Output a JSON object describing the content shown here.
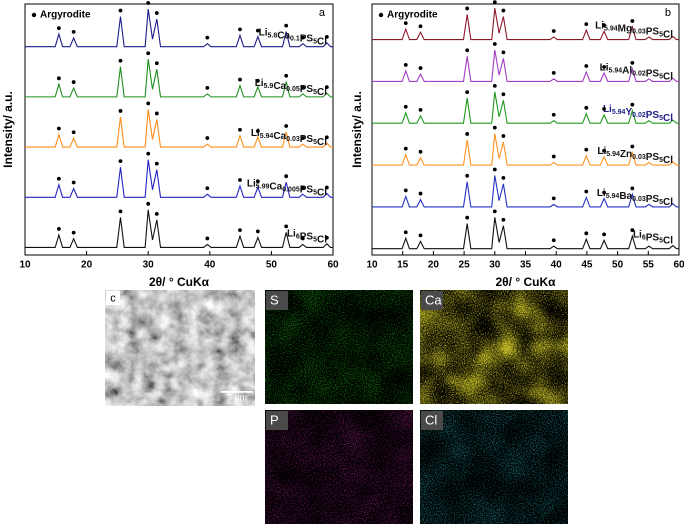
{
  "chart_data": [
    {
      "type": "line",
      "panel_label": "a",
      "ylabel": "Intensity/ a.u.",
      "xlabel": "2θ/ ° CuKα",
      "marker_label": "Argyrodite",
      "peak_markers": [
        15.5,
        17.9,
        25.5,
        30.0,
        31.4,
        39.6,
        44.9,
        47.8,
        52.4,
        55.1,
        59.0
      ],
      "xlim": [
        10,
        60
      ],
      "xticks": [
        10,
        20,
        30,
        40,
        50,
        60
      ],
      "ylim": [
        0,
        10
      ],
      "x": [
        10,
        14.9,
        15.5,
        16.1,
        17.3,
        17.9,
        18.5,
        24.9,
        25.5,
        26.1,
        29.5,
        30.0,
        30.7,
        31.4,
        32.0,
        39.0,
        39.6,
        40.2,
        44.3,
        44.9,
        45.5,
        47.2,
        47.8,
        48.4,
        51.8,
        52.4,
        53.0,
        54.5,
        55.1,
        55.7,
        58.4,
        59.0,
        59.6,
        60
      ],
      "series": [
        {
          "name": "Li5.8Ca0.1PS5Cl",
          "color": "#1c1c8a",
          "values": [
            8.3,
            8.3,
            8.8,
            8.3,
            8.3,
            8.65,
            8.3,
            8.3,
            9.5,
            8.3,
            8.3,
            9.8,
            8.6,
            9.4,
            8.3,
            8.3,
            8.42,
            8.3,
            8.3,
            8.75,
            8.3,
            8.3,
            8.7,
            8.3,
            8.3,
            8.9,
            8.3,
            8.3,
            8.42,
            8.3,
            8.3,
            8.45,
            8.3,
            8.3
          ]
        },
        {
          "name": "Li5.9Ca0.05PS5Cl",
          "color": "#1f8f1f",
          "values": [
            6.3,
            6.3,
            6.8,
            6.3,
            6.3,
            6.65,
            6.3,
            6.3,
            7.5,
            6.3,
            6.3,
            7.8,
            6.6,
            7.4,
            6.3,
            6.3,
            6.42,
            6.3,
            6.3,
            6.75,
            6.3,
            6.3,
            6.7,
            6.3,
            6.3,
            6.9,
            6.3,
            6.3,
            6.42,
            6.3,
            6.3,
            6.45,
            6.3,
            6.3
          ]
        },
        {
          "name": "Li5.94Ca0.03PS5Cl",
          "color": "#ff8c1a",
          "values": [
            4.3,
            4.3,
            4.8,
            4.3,
            4.3,
            4.65,
            4.3,
            4.3,
            5.5,
            4.3,
            4.3,
            5.8,
            4.6,
            5.4,
            4.3,
            4.3,
            4.42,
            4.3,
            4.3,
            4.75,
            4.3,
            4.3,
            4.7,
            4.3,
            4.3,
            4.9,
            4.3,
            4.3,
            4.42,
            4.3,
            4.3,
            4.45,
            4.3,
            4.3
          ]
        },
        {
          "name": "Li5.99Ca0.005PS5Cl",
          "color": "#2424c4",
          "values": [
            2.3,
            2.3,
            2.8,
            2.3,
            2.3,
            2.65,
            2.3,
            2.3,
            3.5,
            2.3,
            2.3,
            3.8,
            2.6,
            3.4,
            2.3,
            2.3,
            2.42,
            2.3,
            2.3,
            2.75,
            2.3,
            2.3,
            2.7,
            2.3,
            2.3,
            2.9,
            2.3,
            2.3,
            2.42,
            2.3,
            2.3,
            2.45,
            2.3,
            2.3
          ]
        },
        {
          "name": "Li6PS5Cl",
          "color": "#111111",
          "values": [
            0.3,
            0.3,
            0.8,
            0.3,
            0.3,
            0.65,
            0.3,
            0.3,
            1.5,
            0.3,
            0.3,
            1.8,
            0.6,
            1.4,
            0.3,
            0.3,
            0.42,
            0.3,
            0.3,
            0.75,
            0.3,
            0.3,
            0.7,
            0.3,
            0.3,
            0.9,
            0.3,
            0.3,
            0.42,
            0.3,
            0.3,
            0.45,
            0.3,
            0.3
          ]
        }
      ]
    },
    {
      "type": "line",
      "panel_label": "b",
      "ylabel": "Intensity/ a.u.",
      "xlabel": "2θ/ ° CuKα",
      "marker_label": "Argyrodite",
      "peak_markers": [
        15.5,
        17.9,
        25.5,
        30.0,
        31.4,
        39.6,
        44.9,
        47.8,
        52.4
      ],
      "xlim": [
        10,
        60
      ],
      "xticks": [
        10,
        15,
        20,
        25,
        30,
        35,
        40,
        45,
        50,
        55,
        60
      ],
      "ylim": [
        0,
        12
      ],
      "x": [
        10,
        14.9,
        15.5,
        16.1,
        17.3,
        17.9,
        18.5,
        24.9,
        25.5,
        26.1,
        29.5,
        30.0,
        30.7,
        31.4,
        32.0,
        39.0,
        39.6,
        40.2,
        44.3,
        44.9,
        45.5,
        47.2,
        47.8,
        48.4,
        51.8,
        52.4,
        53.0,
        54.5,
        55.1,
        55.7,
        58.4,
        59.0,
        59.6,
        60
      ],
      "series": [
        {
          "name": "Li5.94Mg0.03PS5Cl",
          "color": "#8b1a2c",
          "values": [
            10.3,
            10.3,
            10.8,
            10.3,
            10.3,
            10.65,
            10.3,
            10.3,
            11.5,
            10.3,
            10.3,
            11.8,
            10.6,
            11.4,
            10.3,
            10.3,
            10.42,
            10.3,
            10.3,
            10.75,
            10.3,
            10.3,
            10.7,
            10.3,
            10.3,
            10.9,
            10.3,
            10.3,
            10.42,
            10.3,
            10.3,
            10.45,
            10.3,
            10.3
          ]
        },
        {
          "name": "Li5.94Al0.02PS5Cl",
          "color": "#a23fc4",
          "values": [
            8.3,
            8.3,
            8.8,
            8.3,
            8.3,
            8.65,
            8.3,
            8.3,
            9.5,
            8.3,
            8.3,
            9.8,
            8.6,
            9.4,
            8.3,
            8.3,
            8.42,
            8.3,
            8.3,
            8.75,
            8.3,
            8.3,
            8.7,
            8.3,
            8.3,
            8.9,
            8.3,
            8.3,
            8.42,
            8.3,
            8.3,
            8.45,
            8.3,
            8.3
          ]
        },
        {
          "name": "Li5.94Y0.02PS5Cl",
          "color": "#1e9a1e",
          "values": [
            6.3,
            6.3,
            6.8,
            6.3,
            6.3,
            6.65,
            6.3,
            6.3,
            7.5,
            6.3,
            6.3,
            7.8,
            6.6,
            7.4,
            6.3,
            6.3,
            6.42,
            6.3,
            6.3,
            6.75,
            6.3,
            6.3,
            6.7,
            6.3,
            6.3,
            6.9,
            6.3,
            6.3,
            6.42,
            6.3,
            6.3,
            6.45,
            6.3,
            6.3
          ]
        },
        {
          "name": "Li5.94Zn0.03PS5Cl",
          "color": "#ff9324",
          "values": [
            4.3,
            4.3,
            4.8,
            4.3,
            4.3,
            4.65,
            4.3,
            4.3,
            5.5,
            4.3,
            4.3,
            5.8,
            4.6,
            5.4,
            4.3,
            4.3,
            4.42,
            4.3,
            4.3,
            4.75,
            4.3,
            4.3,
            4.7,
            4.3,
            4.3,
            4.9,
            4.3,
            4.3,
            4.42,
            4.3,
            4.3,
            4.45,
            4.3,
            4.3
          ]
        },
        {
          "name": "Li5.94Ba0.03PS5Cl",
          "color": "#2434c4",
          "values": [
            2.3,
            2.3,
            2.8,
            2.3,
            2.3,
            2.65,
            2.3,
            2.3,
            3.5,
            2.3,
            2.3,
            3.8,
            2.6,
            3.4,
            2.3,
            2.3,
            2.42,
            2.3,
            2.3,
            2.75,
            2.3,
            2.3,
            2.7,
            2.3,
            2.3,
            2.9,
            2.3,
            2.3,
            2.42,
            2.3,
            2.3,
            2.45,
            2.3,
            2.3
          ]
        },
        {
          "name": "Li6PS5Cl",
          "color": "#111111",
          "values": [
            0.3,
            0.3,
            0.8,
            0.3,
            0.3,
            0.65,
            0.3,
            0.3,
            1.5,
            0.3,
            0.3,
            1.8,
            0.6,
            1.4,
            0.3,
            0.3,
            0.42,
            0.3,
            0.3,
            0.75,
            0.3,
            0.3,
            0.7,
            0.3,
            0.3,
            0.9,
            0.3,
            0.3,
            0.42,
            0.3,
            0.3,
            0.45,
            0.3,
            0.3
          ]
        }
      ]
    }
  ],
  "sem_image": {
    "panel_label": "c",
    "scale_bar": "3 μm"
  },
  "maps": [
    {
      "label": "S",
      "color": "#22c41c"
    },
    {
      "label": "Ca",
      "color": "#d8d02a"
    },
    {
      "label": "P",
      "color": "#c42aa8"
    },
    {
      "label": "Cl",
      "color": "#2ab8c4"
    }
  ]
}
